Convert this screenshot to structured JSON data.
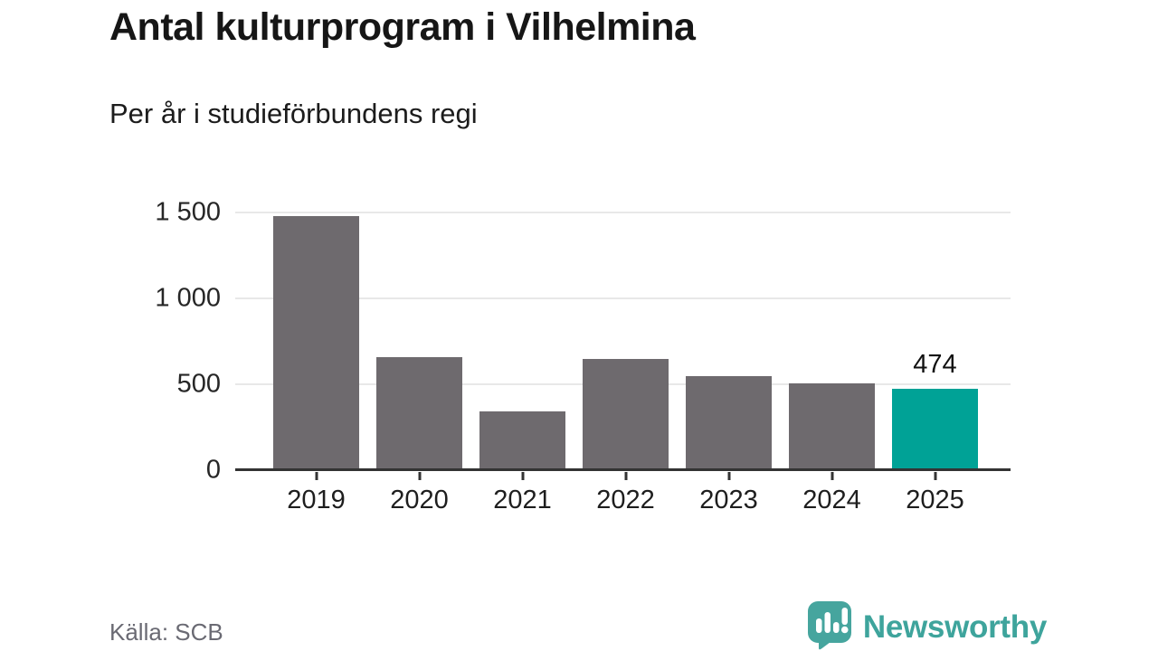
{
  "chart_data": {
    "type": "bar",
    "title": "Antal kulturprogram i Vilhelmina",
    "subtitle": "Per år i studieförbundens regi",
    "categories": [
      "2019",
      "2020",
      "2021",
      "2022",
      "2023",
      "2024",
      "2025"
    ],
    "values": [
      1480,
      660,
      340,
      645,
      550,
      505,
      474
    ],
    "ylim": [
      0,
      1500
    ],
    "yticks": [
      {
        "value": 0,
        "label": "0"
      },
      {
        "value": 500,
        "label": "500"
      },
      {
        "value": 1000,
        "label": "1 000"
      },
      {
        "value": 1500,
        "label": "1 500"
      }
    ],
    "grid": "horizontal",
    "legend": "none",
    "highlight_index": 6,
    "annotation": {
      "index": 6,
      "label": "474"
    },
    "bar_color": "#6e6a6e",
    "highlight_color": "#00a296",
    "axis_color": "#333333",
    "gridline_color": "#e8e8e8"
  },
  "footer": {
    "source": "Källa: SCB",
    "brand_name": "Newsworthy",
    "brand_color": "#3ea49c"
  }
}
